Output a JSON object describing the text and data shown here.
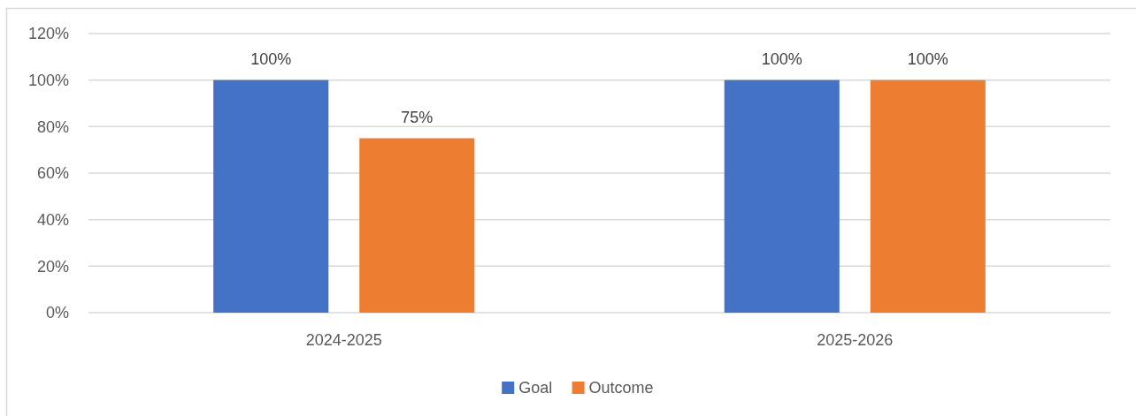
{
  "chart_data": {
    "type": "bar",
    "categories": [
      "2024-2025",
      "2025-2026"
    ],
    "series": [
      {
        "name": "Goal",
        "color": "#4472c4",
        "values": [
          100,
          100
        ],
        "value_labels": [
          "100%",
          "100%"
        ]
      },
      {
        "name": "Outcome",
        "color": "#ed7d31",
        "values": [
          75,
          100
        ],
        "value_labels": [
          "75%",
          "100%"
        ]
      }
    ],
    "ylim": [
      0,
      120
    ],
    "yticks": [
      {
        "value": 0,
        "label": "0%"
      },
      {
        "value": 20,
        "label": "20%"
      },
      {
        "value": 40,
        "label": "40%"
      },
      {
        "value": 60,
        "label": "60%"
      },
      {
        "value": 80,
        "label": "80%"
      },
      {
        "value": 100,
        "label": "100%"
      },
      {
        "value": 120,
        "label": "120%"
      }
    ],
    "grid": "y",
    "legend": "bottom"
  }
}
